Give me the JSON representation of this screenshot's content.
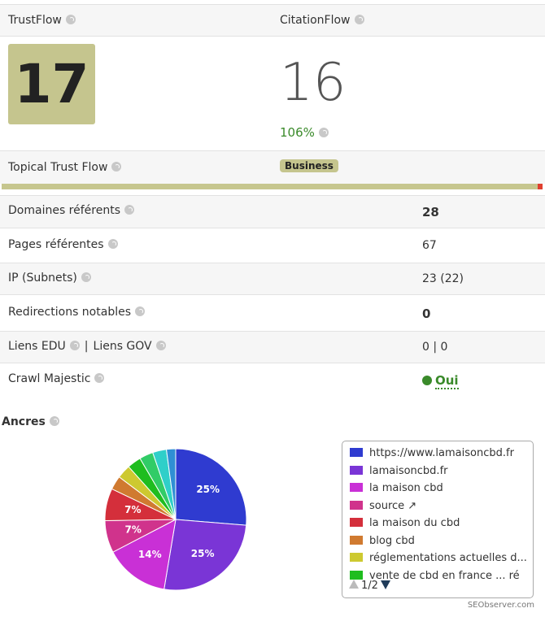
{
  "header": {
    "trustflow_label": "TrustFlow",
    "citationflow_label": "CitationFlow"
  },
  "trustflow": 17,
  "citationflow": 16,
  "citationflow_ratio": "106%",
  "topical": {
    "label": "Topical Trust Flow",
    "tag": "Business"
  },
  "rows": [
    {
      "label": "Domaines référents",
      "value": 28,
      "bold": true
    },
    {
      "label": "Pages référentes",
      "value": 67,
      "bold": false
    },
    {
      "label": "IP (Subnets)",
      "value": "23 (22)",
      "bold": false
    },
    {
      "label": "Redirections notables",
      "value": 0,
      "bold": true
    },
    {
      "label": "Liens EDU",
      "separator": "|",
      "label2": "Liens GOV",
      "value": "0 | 0",
      "bold": false
    },
    {
      "label": "Crawl Majestic",
      "value": "Oui",
      "bold": true,
      "status": "ok"
    }
  ],
  "anchors_title": "Ancres",
  "chart_data": {
    "type": "pie",
    "categories": [
      "https://www.lamaisoncbd.fr",
      "lamaisoncbd.fr",
      "la maison cbd",
      "source ↗",
      "la maison du cbd",
      "blog cbd",
      "réglementations actuelles d...",
      "vente de cbd en france ... ré",
      null,
      null,
      null
    ],
    "values": [
      25,
      25,
      14,
      7,
      7,
      3,
      3,
      3,
      3,
      3,
      2
    ],
    "value_labels": [
      "25%",
      "25%",
      "14%",
      "7%",
      "7%",
      null,
      null,
      null,
      null,
      null,
      null
    ],
    "colors": [
      "#2f3bd0",
      "#7a35d6",
      "#c930d6",
      "#d0338c",
      "#d42f3b",
      "#d07a30",
      "#cdc930",
      "#1fbd1f",
      "#31cc67",
      "#2fcfc9",
      "#2f8fd4"
    ]
  },
  "pager": "1/2",
  "footer": "SEObserver.com"
}
